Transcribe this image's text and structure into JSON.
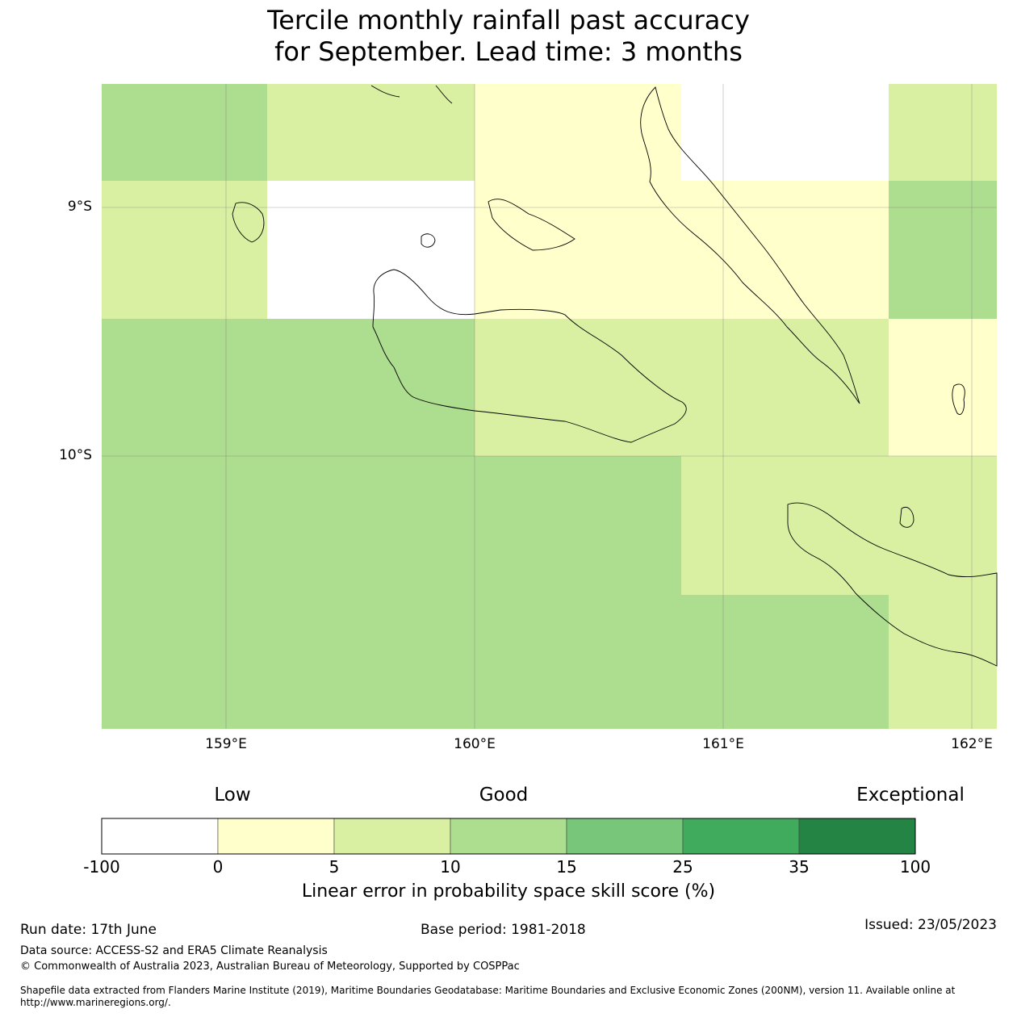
{
  "title": {
    "line1": "Tercile monthly rainfall past accuracy",
    "line2": "for September. Lead time: 3 months"
  },
  "map": {
    "lat_labels": [
      "9°S",
      "10°S"
    ],
    "lon_labels": [
      "159°E",
      "160°E",
      "161°E",
      "162°E"
    ],
    "colors": {
      "c0": "#ffffff",
      "c1": "#ffffcc",
      "c2": "#d9f0a3",
      "c3": "#addd8e",
      "c4": "#78c679",
      "c5": "#41ab5d",
      "c6": "#238443"
    },
    "grid_cells_legend_index": [
      [
        3,
        2,
        2,
        1,
        1,
        0,
        0,
        2
      ],
      [
        2,
        0,
        0,
        1,
        1,
        1,
        1,
        3
      ],
      [
        3,
        3,
        3,
        2,
        2,
        2,
        2,
        1
      ],
      [
        3,
        3,
        3,
        3,
        3,
        2,
        2,
        2
      ],
      [
        3,
        3,
        3,
        3,
        3,
        3,
        3,
        2
      ]
    ]
  },
  "colorbar": {
    "head_labels": [
      "Low",
      "Good",
      "Exceptional"
    ],
    "bins": [
      "c0",
      "c1",
      "c2",
      "c3",
      "c4",
      "c5",
      "c6"
    ],
    "ticks": [
      "-100",
      "0",
      "5",
      "10",
      "15",
      "25",
      "35",
      "100"
    ],
    "caption": "Linear error in probability space skill score (%)"
  },
  "footer": {
    "run_date": "Run date: 17th June",
    "base_period": "Base period: 1981-2018",
    "issued": "Issued: 23/05/2023",
    "data_source": "Data source: ACCESS-S2 and ERA5 Climate Reanalysis",
    "copyright": "© Commonwealth of Australia 2023, Australian Bureau of Meteorology, Supported by COSPPac",
    "shapefile": "Shapefile data extracted from Flanders Marine Institute (2019), Maritime Boundaries Geodatabase: Maritime Boundaries and Exclusive Economic Zones (200NM), version 11. Available online at http://www.marineregions.org/."
  }
}
